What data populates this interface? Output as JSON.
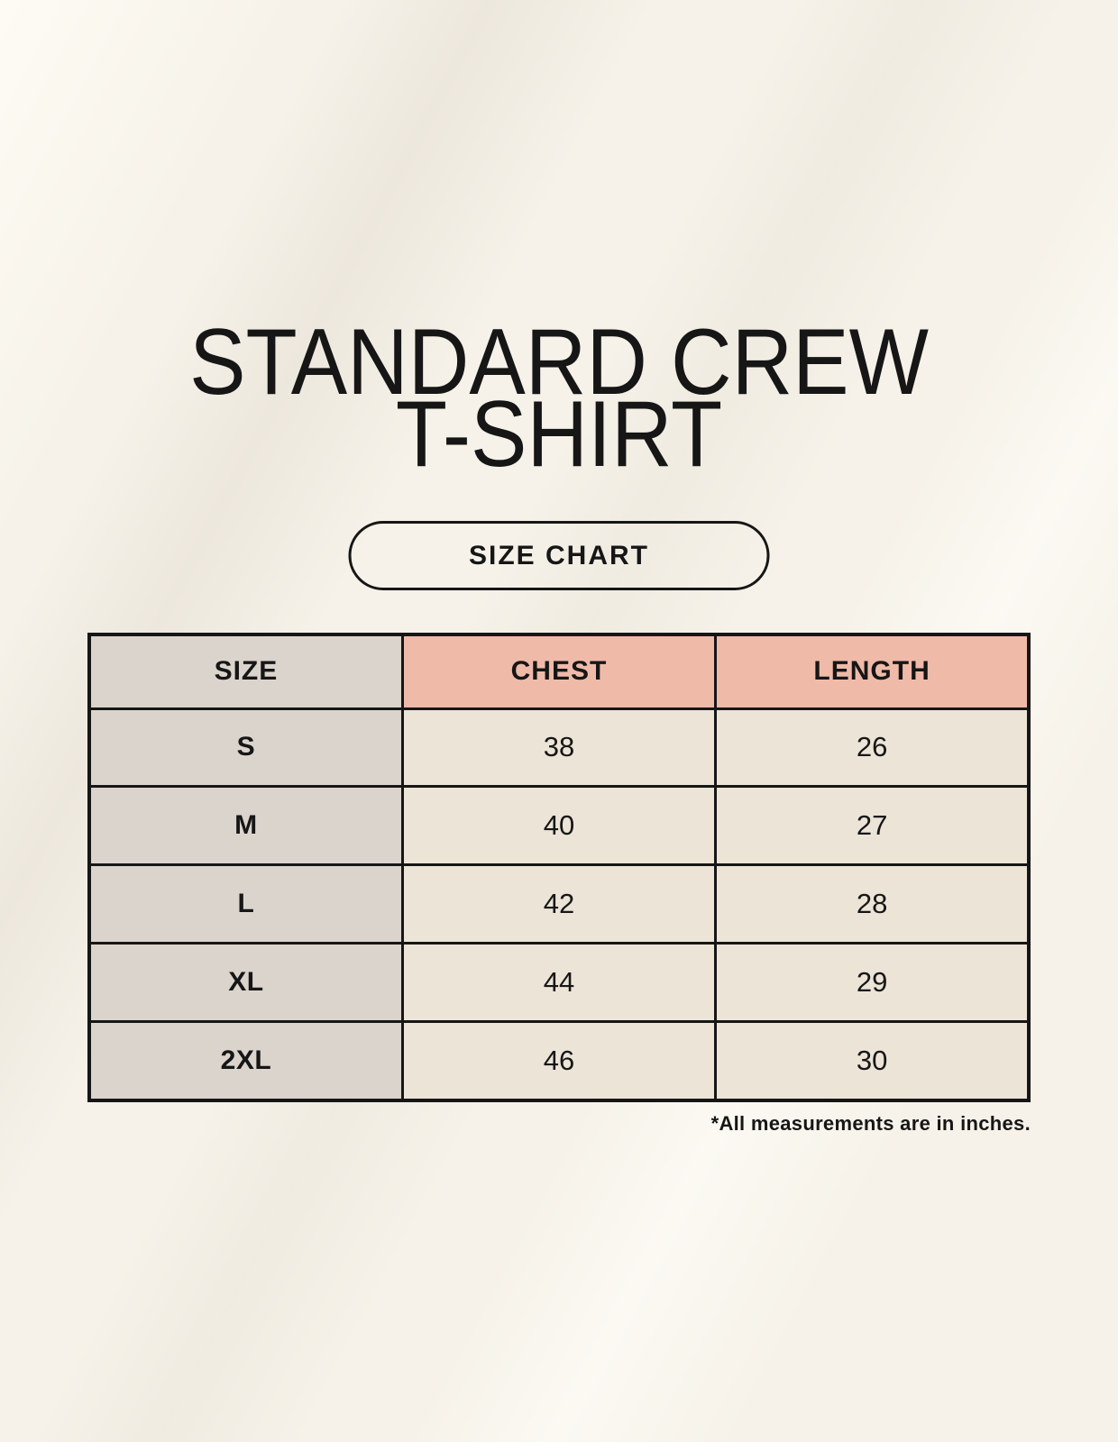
{
  "page": {
    "title_line1": "STANDARD CREW",
    "title_line2": "T-SHIRT",
    "badge_label": "SIZE CHART",
    "footnote": "*All measurements are in inches."
  },
  "colors": {
    "background": "#f6f2e9",
    "header_pink": "#f0baa9",
    "size_col_gray": "#dbd4cd",
    "cell_beige": "#ece4d7",
    "border_black": "#161616",
    "text_black": "#161616"
  },
  "chart_data": {
    "type": "table",
    "title": "STANDARD CREW T-SHIRT",
    "subtitle": "SIZE CHART",
    "columns": [
      "SIZE",
      "CHEST",
      "LENGTH"
    ],
    "rows": [
      [
        "S",
        "38",
        "26"
      ],
      [
        "M",
        "40",
        "27"
      ],
      [
        "L",
        "42",
        "28"
      ],
      [
        "XL",
        "44",
        "29"
      ],
      [
        "2XL",
        "46",
        "30"
      ]
    ],
    "units": "inches",
    "note": "*All measurements are in inches."
  }
}
